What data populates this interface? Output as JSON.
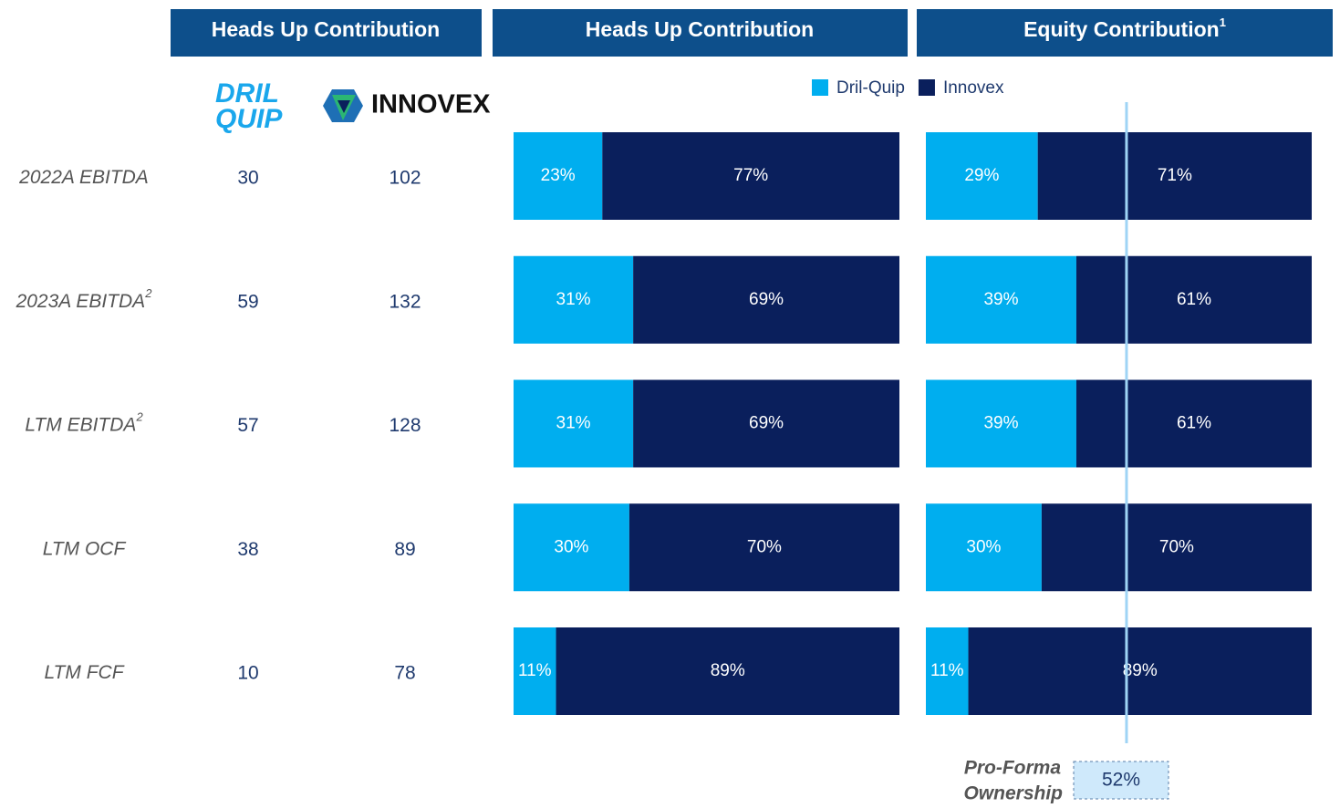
{
  "table": {
    "title": "Heads Up Contribution",
    "logos": {
      "dril_quip": [
        "DRIL",
        "QUIP"
      ],
      "innovex": "INNOVEX"
    },
    "rows": [
      {
        "label": "2022A EBITDA",
        "dril_quip": 30,
        "innovex": 102
      },
      {
        "label": "2023A EBITDA",
        "note": "2",
        "dril_quip": 59,
        "innovex": 132
      },
      {
        "label": "LTM EBITDA",
        "note": "2",
        "dril_quip": 57,
        "innovex": 128
      },
      {
        "label": "LTM OCF",
        "dril_quip": 38,
        "innovex": 89
      },
      {
        "label": "LTM FCF",
        "dril_quip": 10,
        "innovex": 78
      }
    ]
  },
  "chart_data": [
    {
      "type": "bar",
      "orientation": "horizontal",
      "stacked": true,
      "title": "Heads Up Contribution",
      "xlim": [
        0,
        100
      ],
      "legend": "top",
      "series": [
        {
          "name": "Dril-Quip",
          "color": "#00aeef",
          "values": [
            23,
            31,
            31,
            30,
            11
          ],
          "value_labels": [
            "23%",
            "31%",
            "31%",
            "30%",
            "11%"
          ]
        },
        {
          "name": "Innovex",
          "color": "#0a1f5c",
          "values": [
            77,
            69,
            69,
            70,
            89
          ],
          "value_labels": [
            "77%",
            "69%",
            "69%",
            "70%",
            "89%"
          ]
        }
      ]
    },
    {
      "type": "bar",
      "orientation": "horizontal",
      "stacked": true,
      "title": "Equity Contribution",
      "title_note": "1",
      "xlim": [
        0,
        100
      ],
      "series": [
        {
          "color": "#00aeef",
          "values": [
            29,
            39,
            39,
            30,
            11
          ],
          "value_labels": [
            "29%",
            "39%",
            "39%",
            "30%",
            "11%"
          ]
        },
        {
          "color": "#0a1f5c",
          "values": [
            71,
            61,
            61,
            70,
            89
          ],
          "value_labels": [
            "71%",
            "61%",
            "61%",
            "70%",
            "89%"
          ]
        }
      ],
      "reference": {
        "label": [
          "Pro-Forma",
          "Ownership"
        ],
        "value": 52,
        "value_label": "52%",
        "color": "#9fd4f5"
      }
    }
  ]
}
